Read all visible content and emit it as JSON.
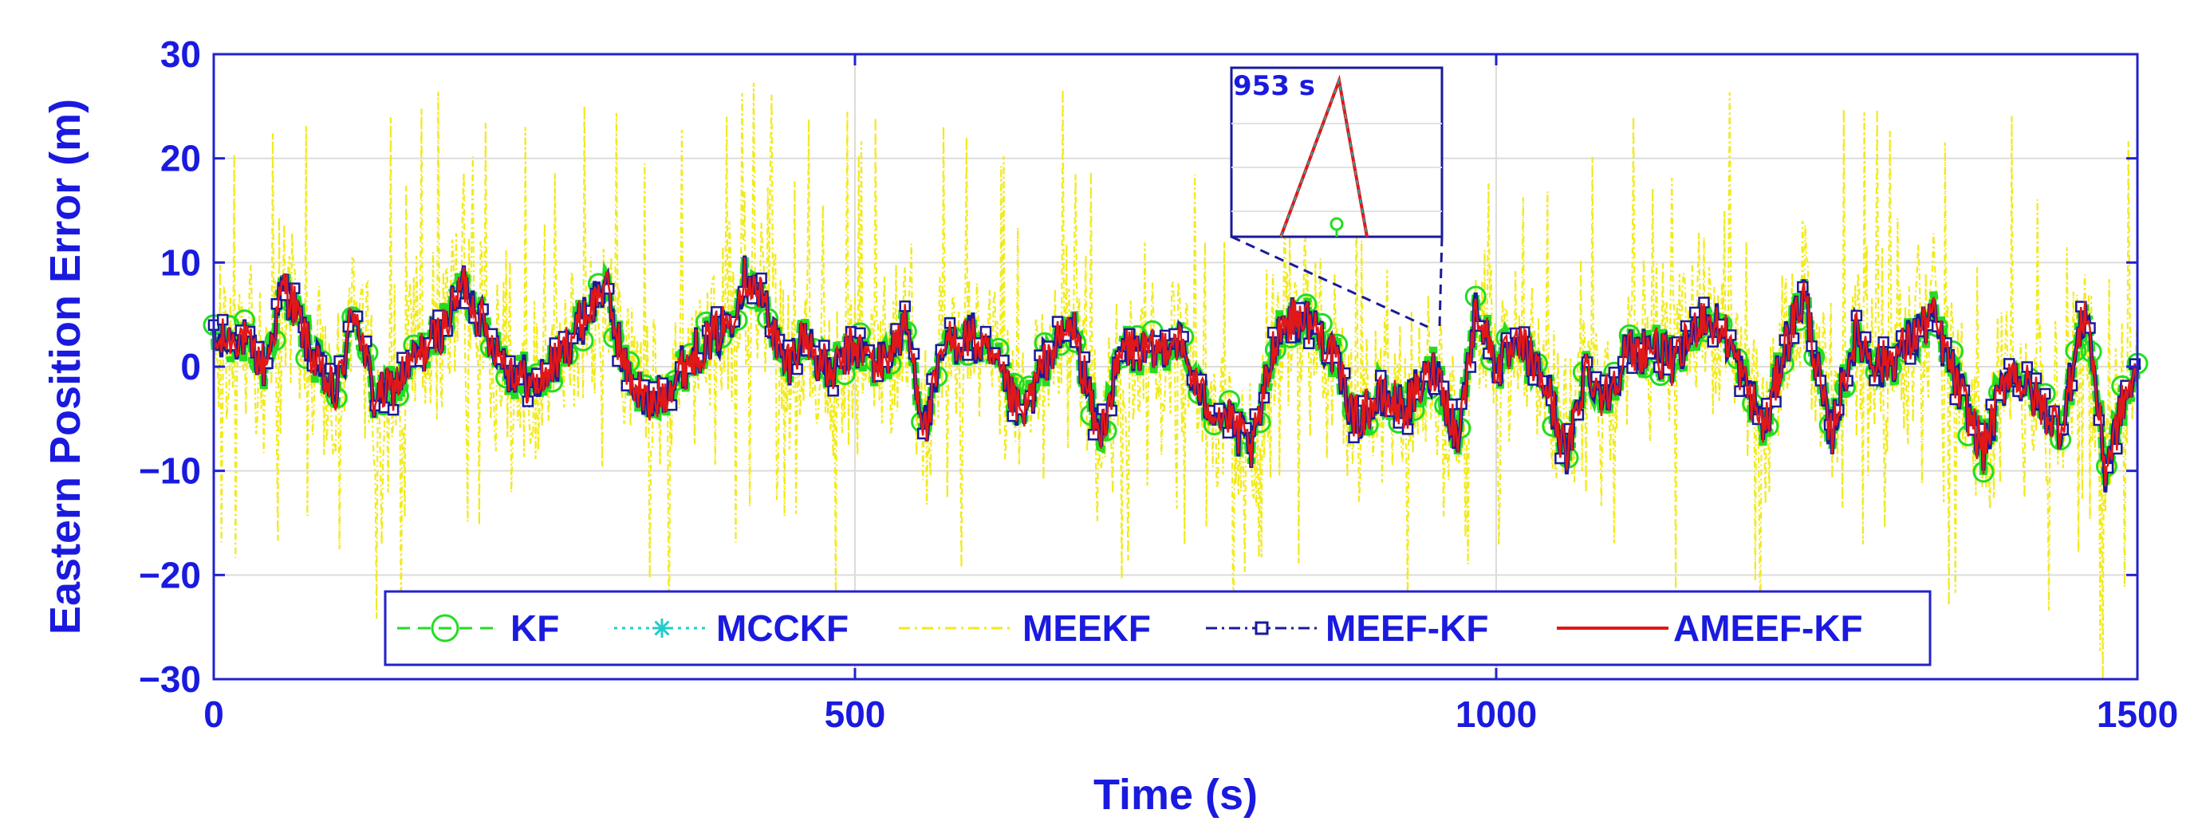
{
  "chart_data": {
    "type": "line",
    "title": "",
    "xlabel": "Time (s)",
    "ylabel": "Eastern Position Error (m)",
    "xlim": [
      0,
      1500
    ],
    "ylim": [
      -30,
      30
    ],
    "xticks": [
      0,
      500,
      1000,
      1500
    ],
    "yticks": [
      30,
      20,
      10,
      0,
      -10,
      -20,
      -30
    ],
    "xtick_labels": [
      "0",
      "500",
      "1000",
      "1500"
    ],
    "ytick_labels": [
      "30",
      "20",
      "10",
      "0",
      "−10",
      "−20",
      "−30"
    ],
    "grid": true,
    "legend_position": "bottom-center",
    "series": [
      {
        "name": "KF",
        "color": "#22dd22",
        "style": "dashed",
        "marker": "circle"
      },
      {
        "name": "MCCKF",
        "color": "#22cccc",
        "style": "dotted",
        "marker": "asterisk"
      },
      {
        "name": "MEEKF",
        "color": "#f2ea1a",
        "style": "dash-dot",
        "marker": "none"
      },
      {
        "name": "MEEF-KF",
        "color": "#1a1a99",
        "style": "dash-dot",
        "marker": "square"
      },
      {
        "name": "AMEEF-KF",
        "color": "#e01818",
        "style": "solid",
        "marker": "none"
      }
    ],
    "trend_x": [
      0,
      20,
      40,
      55,
      65,
      80,
      95,
      110,
      125,
      140,
      160,
      180,
      195,
      210,
      230,
      250,
      270,
      290,
      305,
      320,
      340,
      360,
      380,
      400,
      415,
      430,
      445,
      460,
      480,
      500,
      520,
      540,
      555,
      570,
      590,
      610,
      630,
      650,
      670,
      690,
      710,
      730,
      750,
      770,
      790,
      810,
      830,
      850,
      870,
      890,
      910,
      930,
      953,
      970,
      985,
      1000,
      1020,
      1040,
      1055,
      1070,
      1085,
      1100,
      1120,
      1140,
      1160,
      1180,
      1195,
      1210,
      1225,
      1240,
      1260,
      1280,
      1300,
      1320,
      1340,
      1360,
      1380,
      1400,
      1420,
      1440,
      1460,
      1475,
      1490,
      1500
    ],
    "trend_y": [
      2,
      3,
      0,
      8,
      5,
      0,
      -3,
      6,
      -3,
      -2,
      1,
      4,
      8,
      4,
      0,
      -2,
      1,
      5,
      8,
      0,
      -4,
      -1,
      2,
      4,
      9,
      6,
      0,
      3,
      -1,
      2,
      0,
      4,
      -6,
      2,
      3,
      0,
      -5,
      1,
      4,
      -7,
      2,
      1,
      3,
      -3,
      -5,
      -8,
      4,
      5,
      2,
      -5,
      -3,
      -4,
      0,
      -7,
      6,
      0,
      2,
      -2,
      -9,
      0,
      -3,
      1,
      2,
      0,
      5,
      3,
      -2,
      -6,
      2,
      7,
      -7,
      3,
      0,
      2,
      5,
      -2,
      -8,
      0,
      -3,
      -6,
      6,
      -10,
      -3,
      -1
    ],
    "meekf_spike_peaks": [
      30,
      -20,
      30,
      -25,
      30,
      -22,
      28,
      -28,
      30,
      -30,
      30,
      -30
    ],
    "inset": {
      "label": "953 s",
      "x_center": 953,
      "description_peak_value": 30
    }
  }
}
